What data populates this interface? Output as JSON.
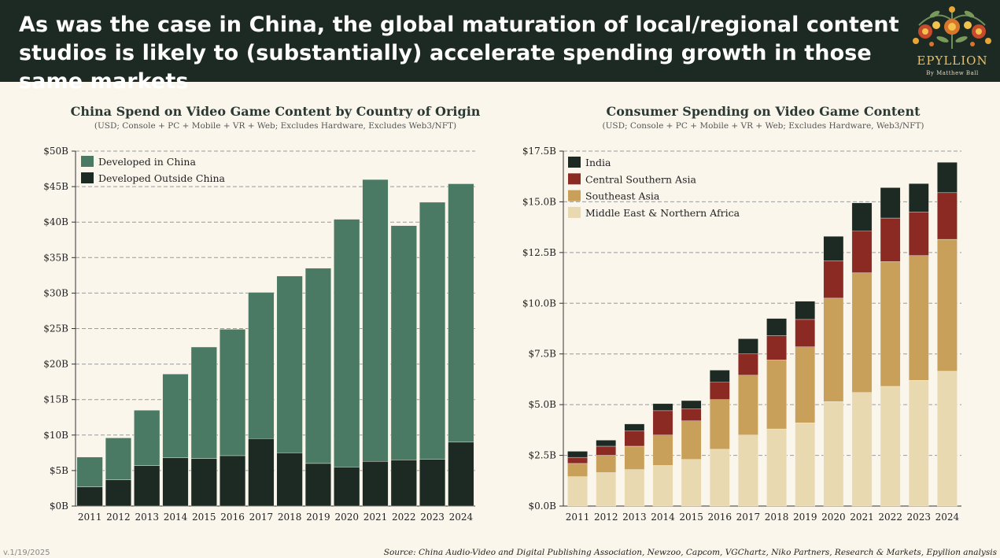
{
  "header": {
    "title": "As was the case in China, the global maturation of local/regional content studios is likely to (substantially) accelerate spending growth in those same markets"
  },
  "logo": {
    "name": "EPYLLION",
    "byline": "By Matthew Ball",
    "icon": "floral-ornament-icon"
  },
  "chart_data": [
    {
      "type": "bar",
      "stacked": true,
      "title": "China Spend on Video Game Content by Country of Origin",
      "subtitle": "(USD; Console + PC + Mobile + VR + Web; Excludes Hardware, Excludes Web3/NFT)",
      "xlabel": "",
      "ylabel": "",
      "ylim": [
        0,
        50
      ],
      "yticks": [
        0,
        5,
        10,
        15,
        20,
        25,
        30,
        35,
        40,
        45,
        50
      ],
      "ytick_labels": [
        "$0B",
        "$5B",
        "$10B",
        "$15B",
        "$20B",
        "$25B",
        "$30B",
        "$35B",
        "$40B",
        "$45B",
        "$50B"
      ],
      "grid": true,
      "legend_position": "top-left",
      "categories": [
        "2011",
        "2012",
        "2013",
        "2014",
        "2015",
        "2016",
        "2017",
        "2018",
        "2019",
        "2020",
        "2021",
        "2022",
        "2023",
        "2024"
      ],
      "series": [
        {
          "name": "Developed Outside China",
          "color": "#1c2a23",
          "values": [
            2.7,
            3.7,
            5.7,
            6.8,
            6.7,
            7.1,
            9.5,
            7.5,
            6.0,
            5.5,
            6.3,
            6.5,
            6.6,
            9.0
          ]
        },
        {
          "name": "Developed in China",
          "color": "#4a7a63",
          "values": [
            4.2,
            5.9,
            7.8,
            11.8,
            15.7,
            17.8,
            20.6,
            24.9,
            27.5,
            34.9,
            39.7,
            33.0,
            36.2,
            36.4
          ]
        }
      ],
      "legend_order": [
        "Developed in China",
        "Developed Outside China"
      ]
    },
    {
      "type": "bar",
      "stacked": true,
      "title": "Consumer Spending on Video Game Content",
      "subtitle": "(USD; Console + PC + Mobile + VR + Web; Excludes Hardware, Web3/NFT)",
      "xlabel": "",
      "ylabel": "",
      "ylim": [
        0,
        17.5
      ],
      "yticks": [
        0,
        2.5,
        5,
        7.5,
        10,
        12.5,
        15,
        17.5
      ],
      "ytick_labels": [
        "$0.0B",
        "$2.5B",
        "$5.0B",
        "$7.5B",
        "$10.0B",
        "$12.5B",
        "$15.0B",
        "$17.5B"
      ],
      "grid": true,
      "legend_position": "top-left",
      "categories": [
        "2011",
        "2012",
        "2013",
        "2014",
        "2015",
        "2016",
        "2017",
        "2018",
        "2019",
        "2020",
        "2021",
        "2022",
        "2023",
        "2024"
      ],
      "series": [
        {
          "name": "Middle East & Northern Africa",
          "color": "#e9d9b0",
          "values": [
            1.45,
            1.65,
            1.8,
            2.0,
            2.3,
            2.8,
            3.5,
            3.8,
            4.1,
            5.15,
            5.6,
            5.9,
            6.2,
            6.65
          ]
        },
        {
          "name": "Southeast Asia",
          "color": "#c9a05a",
          "values": [
            0.65,
            0.85,
            1.15,
            1.5,
            1.9,
            2.45,
            2.95,
            3.4,
            3.75,
            5.1,
            5.9,
            6.15,
            6.15,
            6.5
          ]
        },
        {
          "name": "Central Southern Asia",
          "color": "#8b2a22",
          "values": [
            0.3,
            0.45,
            0.75,
            1.2,
            0.6,
            0.85,
            1.05,
            1.2,
            1.35,
            1.85,
            2.05,
            2.15,
            2.15,
            2.3
          ]
        },
        {
          "name": "India",
          "color": "#1c2a23",
          "values": [
            0.3,
            0.3,
            0.35,
            0.35,
            0.4,
            0.6,
            0.75,
            0.85,
            0.9,
            1.2,
            1.4,
            1.5,
            1.4,
            1.5
          ]
        }
      ],
      "legend_order": [
        "India",
        "Central Southern Asia",
        "Southeast Asia",
        "Middle East & Northern Africa"
      ]
    }
  ],
  "footer": {
    "version": "v.1/19/2025",
    "source": "Source: China Audio-Video and Digital Publishing Association, Newzoo, Capcom, VGChartz, Niko Partners, Research & Markets, Epyllion analysis"
  }
}
